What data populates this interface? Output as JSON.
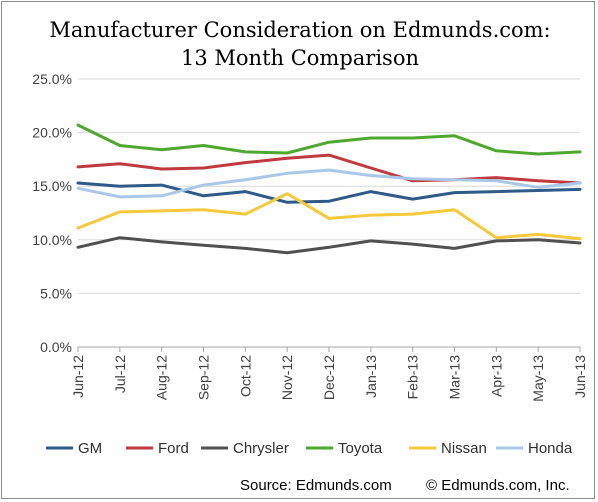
{
  "chart_data": {
    "type": "line",
    "title_lines": [
      "Manufacturer Consideration on Edmunds.com:",
      "13 Month Comparison"
    ],
    "categories": [
      "Jun-12",
      "Jul-12",
      "Aug-12",
      "Sep-12",
      "Oct-12",
      "Nov-12",
      "Dec-12",
      "Jan-13",
      "Feb-13",
      "Mar-13",
      "Apr-13",
      "May-13",
      "Jun-13"
    ],
    "y_ticks": [
      "0.0%",
      "5.0%",
      "10.0%",
      "15.0%",
      "20.0%",
      "25.0%"
    ],
    "ylim": [
      0,
      25
    ],
    "y_unit": "percent",
    "grid": true,
    "legend_position": "bottom",
    "series": [
      {
        "name": "GM",
        "color": "#2e5a87",
        "values": [
          15.3,
          15.0,
          15.1,
          14.1,
          14.5,
          13.5,
          13.6,
          14.5,
          13.8,
          14.4,
          14.5,
          14.6,
          14.7
        ]
      },
      {
        "name": "Ford",
        "color": "#c0393f",
        "values": [
          16.8,
          17.1,
          16.6,
          16.7,
          17.2,
          17.6,
          17.9,
          16.7,
          15.5,
          15.6,
          15.8,
          15.5,
          15.3
        ]
      },
      {
        "name": "Chrysler",
        "color": "#505050",
        "values": [
          9.3,
          10.2,
          9.8,
          9.5,
          9.2,
          8.8,
          9.3,
          9.9,
          9.6,
          9.2,
          9.9,
          10.0,
          9.7
        ]
      },
      {
        "name": "Toyota",
        "color": "#4ea72e",
        "values": [
          20.7,
          18.8,
          18.4,
          18.8,
          18.2,
          18.1,
          19.1,
          19.5,
          19.5,
          19.7,
          18.3,
          18.0,
          18.2
        ]
      },
      {
        "name": "Nissan",
        "color": "#f5c93a",
        "values": [
          11.1,
          12.6,
          12.7,
          12.8,
          12.4,
          14.3,
          12.0,
          12.3,
          12.4,
          12.8,
          10.2,
          10.5,
          10.1
        ]
      },
      {
        "name": "Honda",
        "color": "#a9c8e8",
        "values": [
          14.8,
          14.0,
          14.1,
          15.1,
          15.6,
          16.2,
          16.5,
          16.0,
          15.7,
          15.6,
          15.5,
          14.9,
          15.3
        ]
      }
    ],
    "source": "Source:  Edmunds.com",
    "copyright": "© Edmunds.com, Inc."
  }
}
